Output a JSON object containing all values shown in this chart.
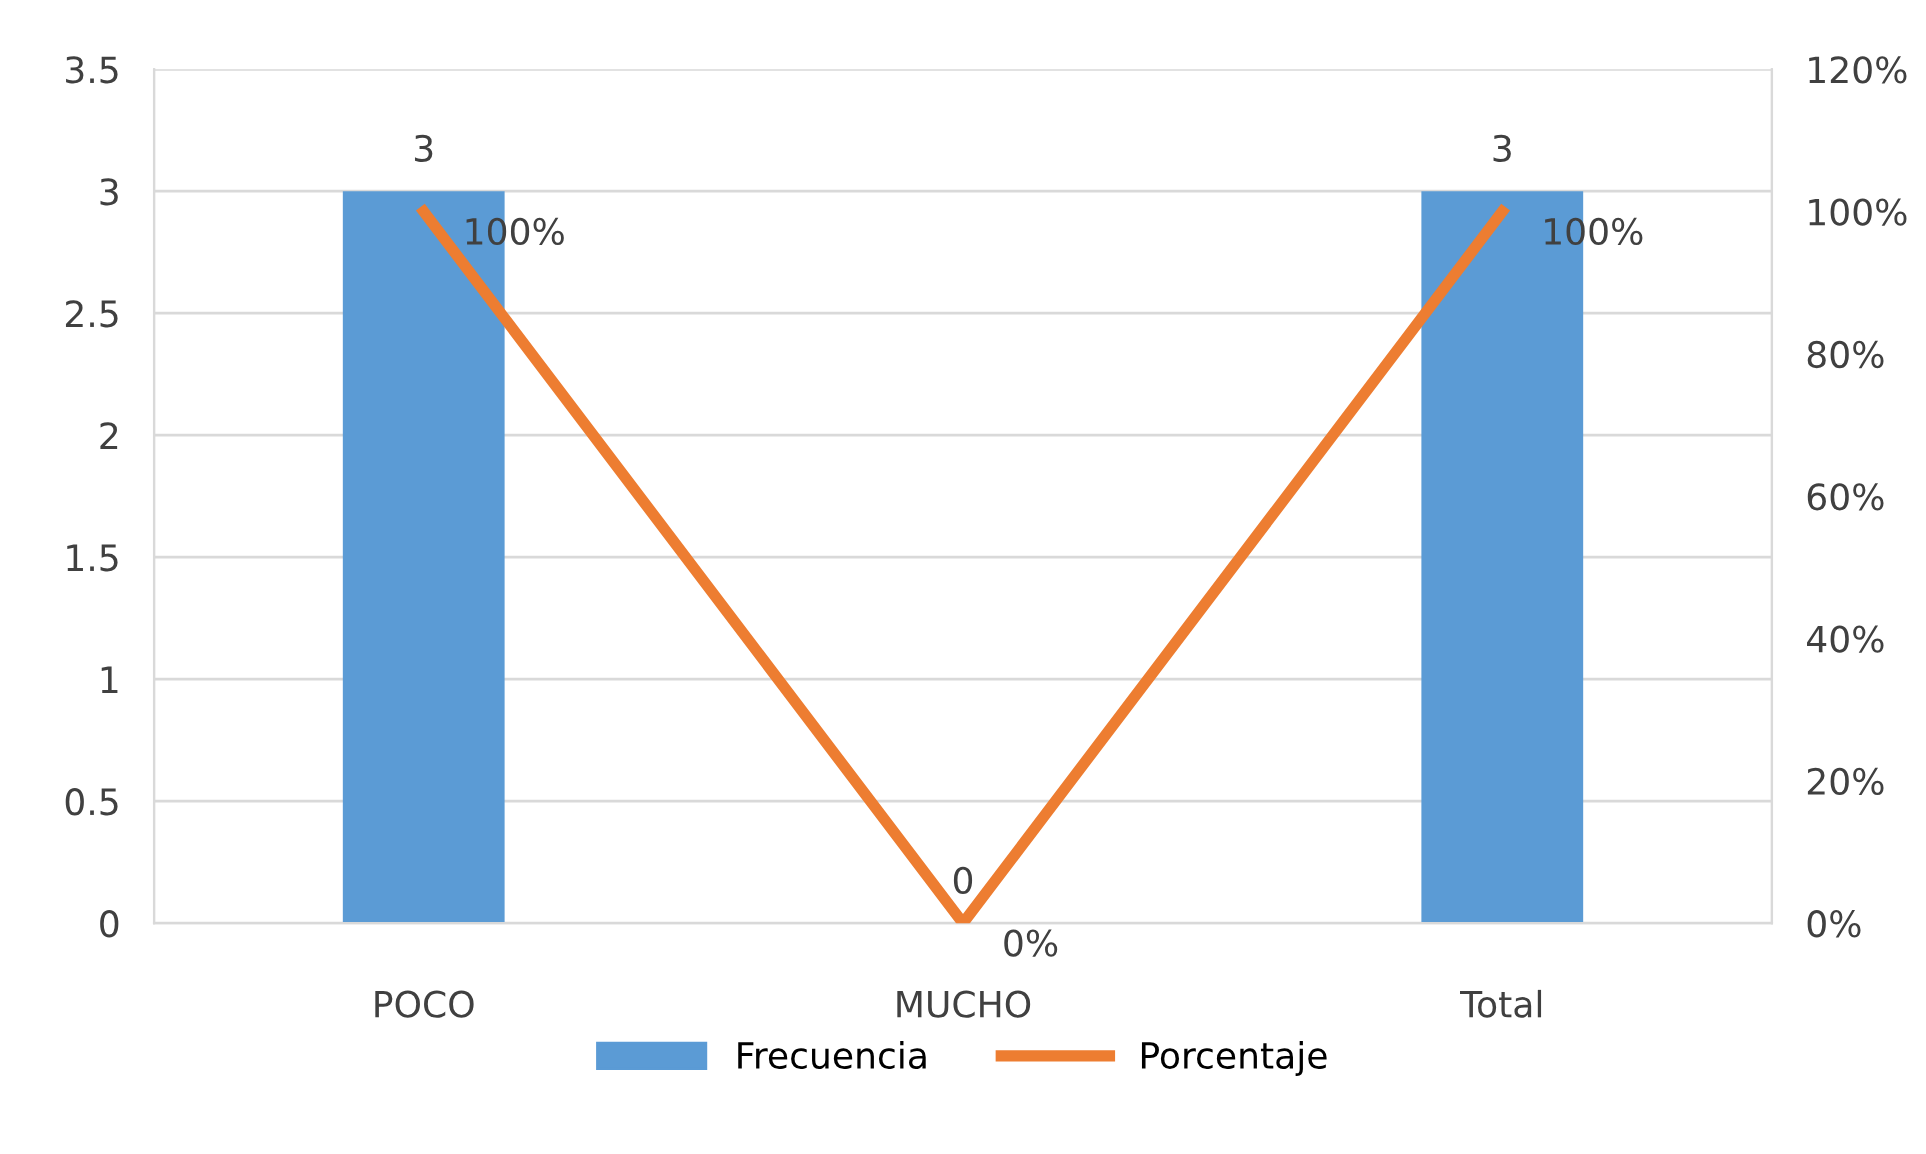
{
  "chart_data": {
    "type": "bar",
    "categories": [
      "POCO",
      "MUCHO",
      "Total"
    ],
    "series": [
      {
        "name": "Frecuencia",
        "color": "#5b9bd5",
        "values": [
          3,
          0,
          3
        ],
        "data_labels": true
      },
      {
        "name": "Porcentaje",
        "type": "line",
        "axis": "y2",
        "color": "#ed7d31",
        "values": [
          100,
          0,
          100
        ],
        "value_labels": [
          "100%",
          "0%",
          "100%"
        ]
      }
    ],
    "ylim": [
      0,
      3.5
    ],
    "yticks": [
      0,
      0.5,
      1,
      1.5,
      2,
      2.5,
      3,
      3.5
    ],
    "y2lim": [
      0,
      120
    ],
    "y2ticks": [
      {
        "value": 0,
        "label": "0%"
      },
      {
        "value": 20,
        "label": "20%"
      },
      {
        "value": 40,
        "label": "40%"
      },
      {
        "value": 60,
        "label": "60%"
      },
      {
        "value": 80,
        "label": "80%"
      },
      {
        "value": 100,
        "label": "100%"
      },
      {
        "value": 120,
        "label": "120%"
      }
    ],
    "grid": "y",
    "legend": "bottom",
    "marker": "none",
    "line_style": "solid"
  }
}
